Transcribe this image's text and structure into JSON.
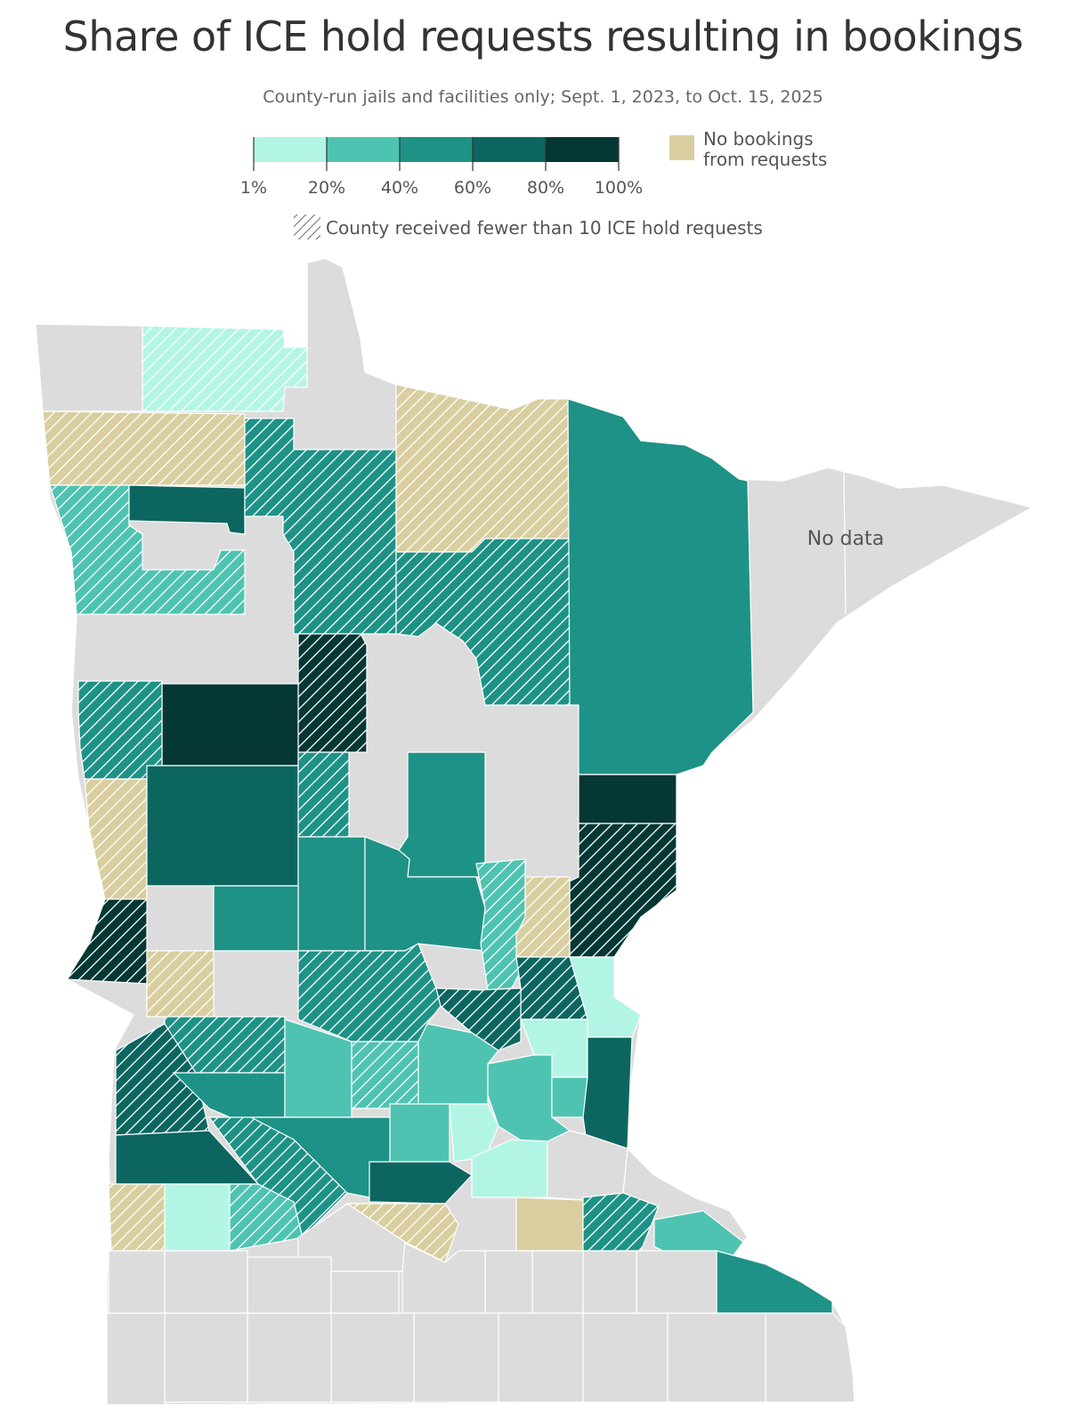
{
  "title": "Share of ICE hold requests resulting in bookings",
  "subtitle": "County-run jails and facilities only; Sept. 1, 2023, to Oct. 15, 2025",
  "legend": {
    "bins": [
      {
        "color": "#b3f5e4"
      },
      {
        "color": "#4fc3b1"
      },
      {
        "color": "#1e9286"
      },
      {
        "color": "#0c665f"
      },
      {
        "color": "#053735"
      }
    ],
    "ticks": [
      "1%",
      "20%",
      "40%",
      "60%",
      "80%",
      "100%"
    ],
    "no_bookings": {
      "color": "#d9ce9f",
      "line1": "No bookings",
      "line2": "from requests"
    },
    "hatch_note": "County received fewer than 10 ICE hold requests"
  },
  "map_label": "No data",
  "colors": {
    "no_data": "#dcdcdc",
    "border": "#ffffff"
  },
  "counties": [
    {
      "cls": "c1",
      "hatch": true
    },
    {
      "cls": "nd",
      "hatch": false
    },
    {
      "cls": "nb",
      "hatch": true
    },
    {
      "cls": "c2",
      "hatch": true
    },
    {
      "cls": "c4",
      "hatch": false
    },
    {
      "cls": "c3",
      "hatch": true
    },
    {
      "cls": "nb",
      "hatch": true
    },
    {
      "cls": "c3",
      "hatch": true
    },
    {
      "cls": "c3",
      "hatch": false
    },
    {
      "cls": "c5",
      "hatch": true
    },
    {
      "cls": "c5",
      "hatch": false
    },
    {
      "cls": "c3",
      "hatch": true
    },
    {
      "cls": "nb",
      "hatch": true
    },
    {
      "cls": "c4",
      "hatch": false
    },
    {
      "cls": "c3",
      "hatch": true
    },
    {
      "cls": "c5",
      "hatch": true
    },
    {
      "cls": "c5",
      "hatch": false
    },
    {
      "cls": "c5",
      "hatch": true
    },
    {
      "cls": "c3",
      "hatch": false
    },
    {
      "cls": "c3",
      "hatch": false
    },
    {
      "cls": "c3",
      "hatch": false
    },
    {
      "cls": "c3",
      "hatch": false
    },
    {
      "cls": "c2",
      "hatch": true
    },
    {
      "cls": "nb",
      "hatch": true
    },
    {
      "cls": "c4",
      "hatch": true
    },
    {
      "cls": "nb",
      "hatch": true
    },
    {
      "cls": "c1",
      "hatch": false
    },
    {
      "cls": "c1",
      "hatch": false
    },
    {
      "cls": "c2",
      "hatch": false
    },
    {
      "cls": "c2",
      "hatch": false
    },
    {
      "cls": "c4",
      "hatch": false
    },
    {
      "cls": "c3",
      "hatch": true
    },
    {
      "cls": "c4",
      "hatch": true
    },
    {
      "cls": "c3",
      "hatch": true
    },
    {
      "cls": "c4",
      "hatch": true
    },
    {
      "cls": "c4",
      "hatch": false
    },
    {
      "cls": "c3",
      "hatch": false
    },
    {
      "cls": "c2",
      "hatch": false
    },
    {
      "cls": "c2",
      "hatch": true
    },
    {
      "cls": "c2",
      "hatch": false
    },
    {
      "cls": "c1",
      "hatch": false
    },
    {
      "cls": "c2",
      "hatch": false
    },
    {
      "cls": "c1",
      "hatch": false
    },
    {
      "cls": "c1",
      "hatch": false
    },
    {
      "cls": "nd",
      "hatch": false
    },
    {
      "cls": "nb",
      "hatch": true
    },
    {
      "cls": "c2",
      "hatch": true
    },
    {
      "cls": "c3",
      "hatch": true
    },
    {
      "cls": "c3",
      "hatch": false
    },
    {
      "cls": "c4",
      "hatch": false
    },
    {
      "cls": "nb",
      "hatch": true
    },
    {
      "cls": "nb",
      "hatch": false
    },
    {
      "cls": "c3",
      "hatch": true
    },
    {
      "cls": "c2",
      "hatch": false
    },
    {
      "cls": "c3",
      "hatch": false
    }
  ]
}
